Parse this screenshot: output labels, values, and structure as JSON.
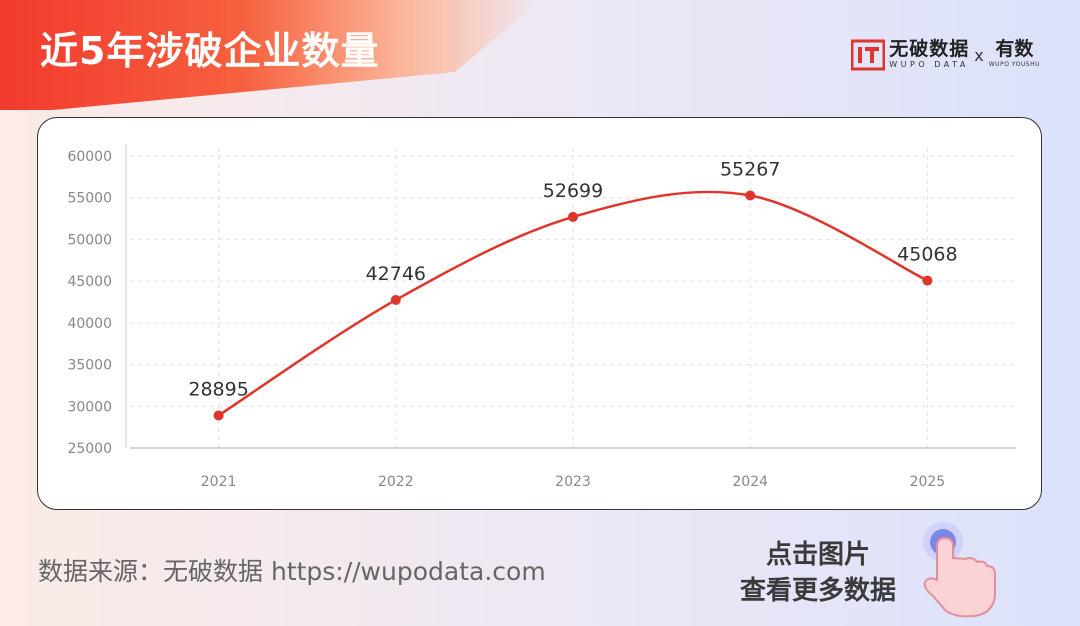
{
  "header": {
    "title": "近5年涉破企业数量",
    "brand_name": "无破数据",
    "brand_sub": "WUPO DATA",
    "brand_x": "x",
    "partner_name": "有数",
    "partner_sub": "WUPO YOUSHU"
  },
  "footer": {
    "source": "数据来源：无破数据 https://wupodata.com",
    "cta_line1": "点击图片",
    "cta_line2": "查看更多数据"
  },
  "icons": [
    "brand-logo-icon",
    "pointing-hand-icon"
  ],
  "colors": {
    "accent": "#e0352b",
    "title_bg": "#f23a2e"
  },
  "chart_data": {
    "type": "line",
    "smooth": true,
    "categories": [
      "2021",
      "2022",
      "2023",
      "2024",
      "2025"
    ],
    "values": [
      28895,
      42746,
      52699,
      55267,
      45068
    ],
    "data_labels": [
      "28895",
      "42746",
      "52699",
      "55267",
      "45068"
    ],
    "yticks": [
      "25000",
      "30000",
      "35000",
      "40000",
      "45000",
      "50000",
      "55000",
      "60000"
    ],
    "ylim": [
      25000,
      60000
    ],
    "grid": true,
    "color": "#e0352b"
  }
}
